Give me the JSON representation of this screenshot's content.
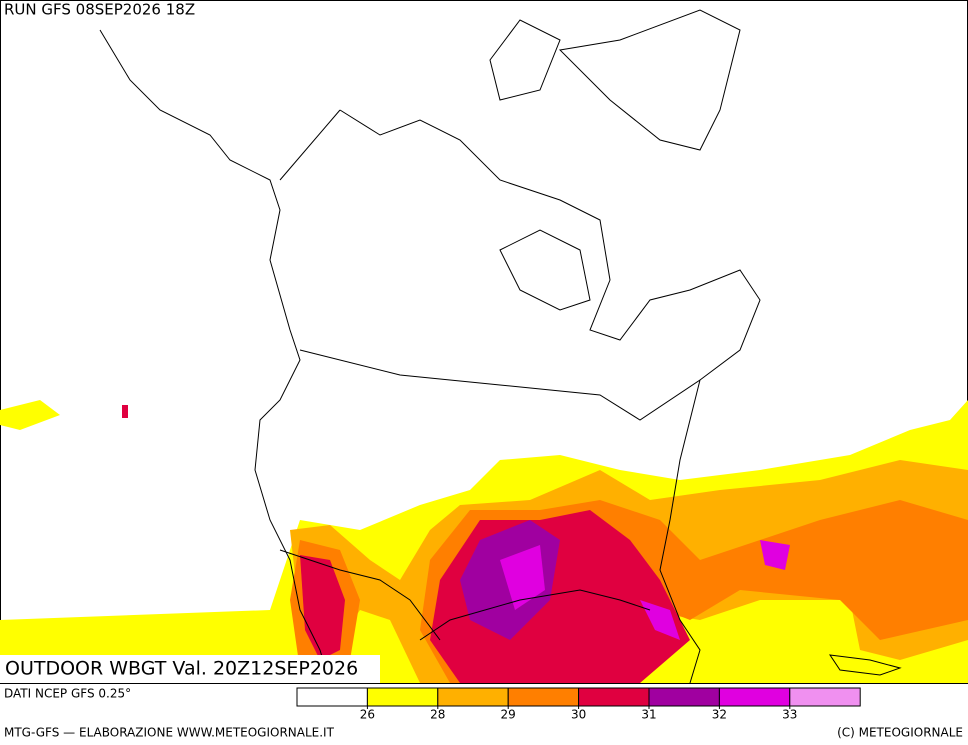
{
  "header": {
    "run": "RUN GFS 08SEP2026 18Z"
  },
  "map": {
    "title": "OUTDOOR WBGT Val. 20Z12SEP2026"
  },
  "legend": {
    "source": "DATI NCEP GFS 0.25°",
    "colors": [
      "#ffffff",
      "#ffff00",
      "#ffb000",
      "#ff7f00",
      "#e00040",
      "#a000a0",
      "#e000e0",
      "#f090f0"
    ],
    "ticks": [
      26,
      28,
      29,
      30,
      31,
      32,
      33
    ]
  },
  "footer": {
    "left": "MTG-GFS — ELABORAZIONE WWW.METEOGIORNALE.IT",
    "right": "(C) METEOGIORNALE"
  }
}
